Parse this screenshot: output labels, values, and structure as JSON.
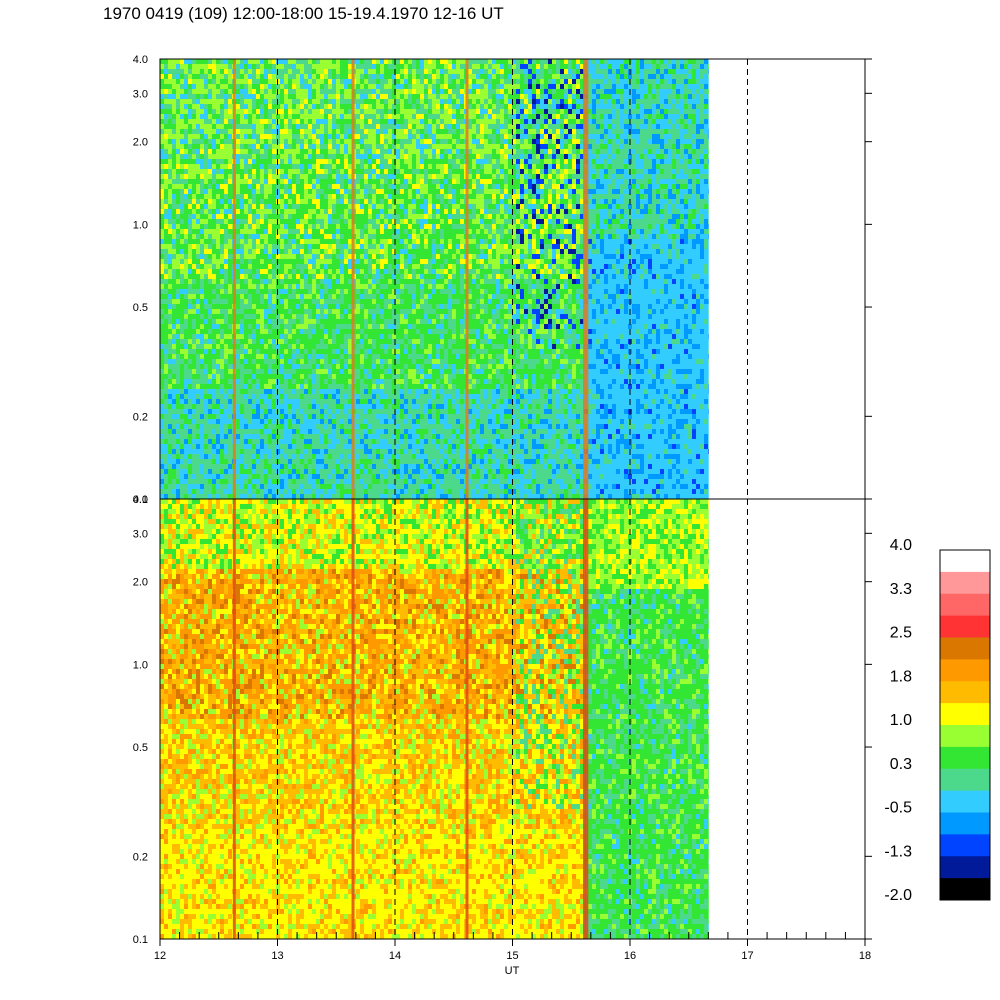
{
  "chart_data": {
    "type": "heatmap",
    "title": "1970 0419 (109) 12:00-18:00 15-19.4.1970  12-16 UT",
    "xlabel": "UT",
    "x_ticks": [
      "12",
      "13",
      "14",
      "15",
      "16",
      "17",
      "18"
    ],
    "xlim": [
      12,
      18
    ],
    "data_end_ut": 16.67,
    "y_scale": "log",
    "ylim": [
      0.1,
      4.0
    ],
    "grid": "vertical dashed lines at each hour",
    "panels": [
      {
        "name": "",
        "y_ticks": [
          "0.1",
          "0.2",
          "0.5",
          "1.0",
          "2.0",
          "3.0",
          "4.0"
        ],
        "dominant_level": "0.3 to 1.0 (green / yellow-green)",
        "after_15_6_level": "-0.5 to -1.3 (light blue)"
      },
      {
        "name": "",
        "y_ticks": [
          "0.1",
          "0.2",
          "0.5",
          "1.0",
          "2.0",
          "3.0",
          "4.0"
        ],
        "dominant_level": "1.0 to 2.5 (yellow / orange)",
        "after_15_6_level": "0.3 to 1.0 (green)"
      }
    ],
    "colorbar": {
      "labels": [
        "4.0",
        "3.3",
        "2.5",
        "1.8",
        "1.0",
        "0.3",
        "-0.5",
        "-1.3",
        "-2.0"
      ],
      "colors": [
        "#ffffff",
        "#ff9999",
        "#ff6666",
        "#ff3333",
        "#d97700",
        "#ff9900",
        "#ffbb00",
        "#ffff00",
        "#99ff33",
        "#33e633",
        "#4dd98c",
        "#33ccff",
        "#0099ff",
        "#0044ff",
        "#001a99",
        "#000000"
      ]
    }
  }
}
